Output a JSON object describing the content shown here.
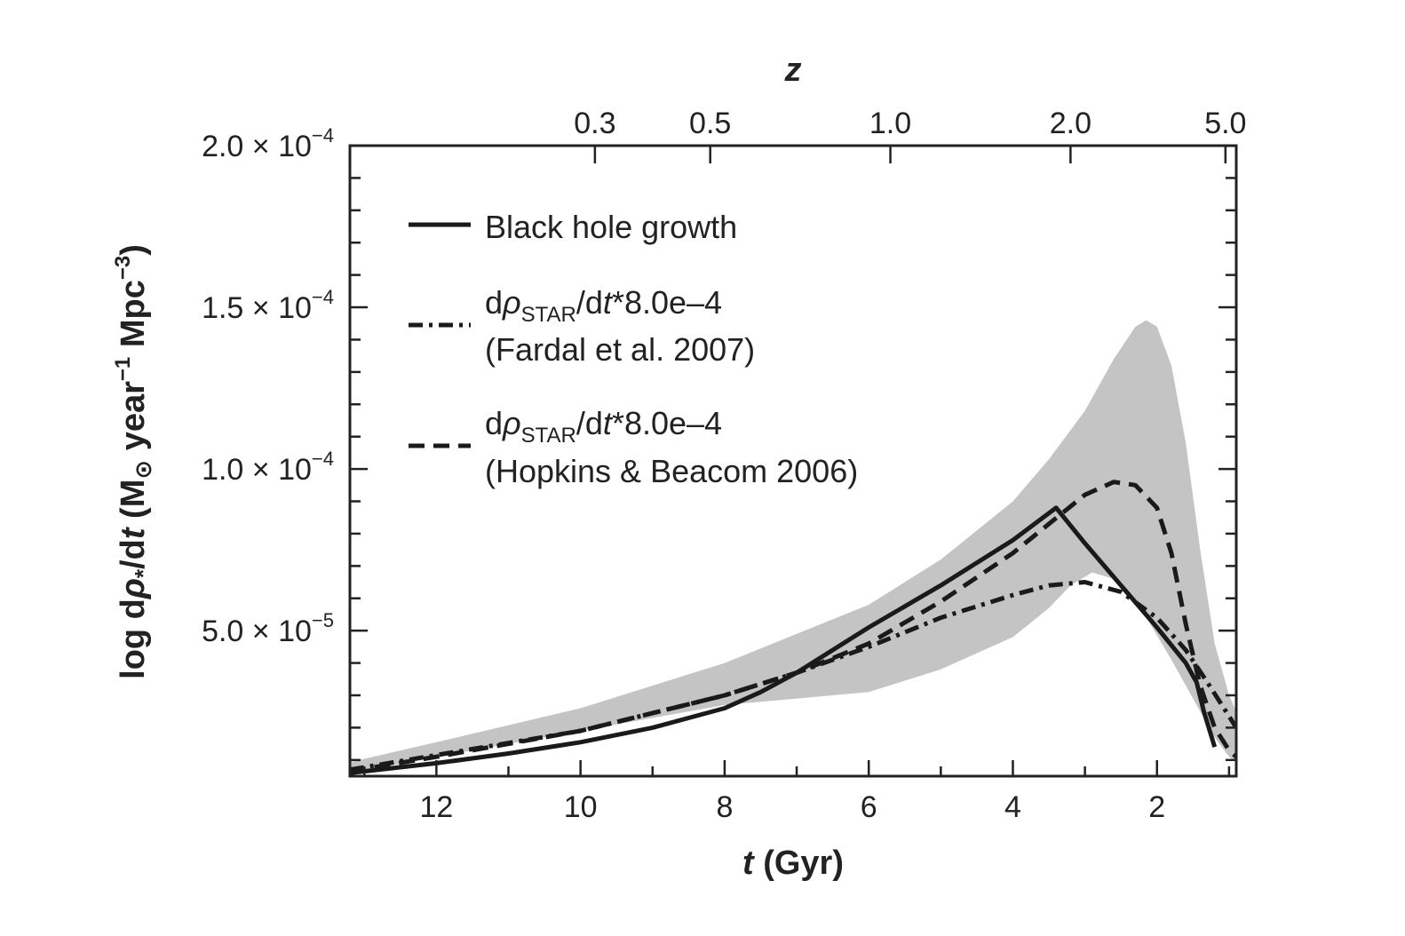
{
  "chart_data": {
    "type": "line",
    "title": "",
    "xlabel": {
      "italic": "t",
      "rest": " (Gyr)"
    },
    "ylabel": {
      "prefix": "log d",
      "rho": "ρ",
      "dot_subscript": "*",
      "mid": "/d",
      "t": "t",
      "units_open": " (M",
      "sun": "⊙",
      "year": " year",
      "year_exp": "−1",
      "mpc": " Mpc",
      "mpc_exp": "−3",
      "units_close": ")"
    },
    "top_axis_label": "z",
    "xlim": [
      13.2,
      0.9
    ],
    "ylim": [
      5e-06,
      0.0002
    ],
    "x_ticks": [
      {
        "value": 12,
        "label": "12"
      },
      {
        "value": 10,
        "label": "10"
      },
      {
        "value": 8,
        "label": "8"
      },
      {
        "value": 6,
        "label": "6"
      },
      {
        "value": 4,
        "label": "4"
      },
      {
        "value": 2,
        "label": "2"
      }
    ],
    "x_minor_step": 1,
    "top_ticks": [
      {
        "t": 9.8,
        "label": "0.3"
      },
      {
        "t": 8.2,
        "label": "0.5"
      },
      {
        "t": 5.7,
        "label": "1.0"
      },
      {
        "t": 3.2,
        "label": "2.0"
      },
      {
        "t": 1.05,
        "label": "5.0"
      }
    ],
    "y_ticks": [
      {
        "value": 5e-05,
        "mant": "5.0",
        "exp": "−5"
      },
      {
        "value": 0.0001,
        "mant": "1.0",
        "exp": "−4"
      },
      {
        "value": 0.00015,
        "mant": "1.5",
        "exp": "−4"
      },
      {
        "value": 0.0002,
        "mant": "2.0",
        "exp": "−4"
      }
    ],
    "y_tick_times": "× 10",
    "y_minor_step": 1e-05,
    "band": {
      "upper": [
        [
          13.2,
          9.3e-06
        ],
        [
          12,
          1.55e-05
        ],
        [
          10,
          2.6e-05
        ],
        [
          8,
          4e-05
        ],
        [
          6,
          5.8e-05
        ],
        [
          5,
          7.2e-05
        ],
        [
          4,
          9e-05
        ],
        [
          3.5,
          0.000103
        ],
        [
          3,
          0.000118
        ],
        [
          2.6,
          0.000134
        ],
        [
          2.3,
          0.000144
        ],
        [
          2.15,
          0.000146
        ],
        [
          2.0,
          0.000144
        ],
        [
          1.8,
          0.000132
        ],
        [
          1.6,
          0.000108
        ],
        [
          1.4,
          7.5e-05
        ],
        [
          1.2,
          4.6e-05
        ],
        [
          1.0,
          3e-05
        ],
        [
          0.9,
          2.5e-05
        ]
      ],
      "lower": [
        [
          13.2,
          5.8e-06
        ],
        [
          12,
          1.1e-05
        ],
        [
          10,
          1.9e-05
        ],
        [
          8,
          2.7e-05
        ],
        [
          7,
          2.9e-05
        ],
        [
          6,
          3.1e-05
        ],
        [
          5,
          3.8e-05
        ],
        [
          4,
          4.8e-05
        ],
        [
          3.5,
          5.7e-05
        ],
        [
          3.2,
          6.4e-05
        ],
        [
          2.9,
          6.8e-05
        ],
        [
          2.6,
          6.6e-05
        ],
        [
          2.2,
          5.6e-05
        ],
        [
          1.8,
          4.1e-05
        ],
        [
          1.5,
          2.9e-05
        ],
        [
          1.2,
          1.7e-05
        ],
        [
          1.0,
          1.1e-05
        ],
        [
          0.9,
          9.5e-06
        ]
      ]
    },
    "series": [
      {
        "name": "Black hole growth",
        "style": "solid",
        "points": [
          [
            13.2,
            6e-06
          ],
          [
            12,
            9e-06
          ],
          [
            11,
            1.2e-05
          ],
          [
            10,
            1.55e-05
          ],
          [
            9,
            2e-05
          ],
          [
            8,
            2.6e-05
          ],
          [
            7.5,
            3.1e-05
          ],
          [
            7,
            3.7e-05
          ],
          [
            6.5,
            4.4e-05
          ],
          [
            6,
            5.1e-05
          ],
          [
            5,
            6.4e-05
          ],
          [
            4,
            7.8e-05
          ],
          [
            3.4,
            8.8e-05
          ],
          [
            3.0,
            7.7e-05
          ],
          [
            2.5,
            6.4e-05
          ],
          [
            2.0,
            5.1e-05
          ],
          [
            1.6,
            4e-05
          ],
          [
            1.45,
            3.4e-05
          ],
          [
            1.35,
            2.5e-05
          ],
          [
            1.2,
            1.4e-05
          ]
        ]
      },
      {
        "name": "Fardal",
        "style": "dashdot",
        "points": [
          [
            13.2,
            7e-06
          ],
          [
            12,
            1.15e-05
          ],
          [
            10,
            1.9e-05
          ],
          [
            8,
            3e-05
          ],
          [
            7,
            3.7e-05
          ],
          [
            6,
            4.5e-05
          ],
          [
            5,
            5.4e-05
          ],
          [
            4,
            6.1e-05
          ],
          [
            3.5,
            6.4e-05
          ],
          [
            3.0,
            6.5e-05
          ],
          [
            2.5,
            6.2e-05
          ],
          [
            2.0,
            5.4e-05
          ],
          [
            1.6,
            4.4e-05
          ],
          [
            1.3,
            3.4e-05
          ],
          [
            1.1,
            2.7e-05
          ],
          [
            0.9,
            2e-05
          ]
        ]
      },
      {
        "name": "Hopkins",
        "style": "dashed",
        "points": [
          [
            13.2,
            6.5e-06
          ],
          [
            12,
            1.1e-05
          ],
          [
            10,
            1.9e-05
          ],
          [
            8,
            3e-05
          ],
          [
            7,
            3.7e-05
          ],
          [
            6,
            4.6e-05
          ],
          [
            5,
            5.9e-05
          ],
          [
            4,
            7.4e-05
          ],
          [
            3.5,
            8.3e-05
          ],
          [
            3.0,
            9.2e-05
          ],
          [
            2.6,
            9.6e-05
          ],
          [
            2.3,
            9.5e-05
          ],
          [
            2.0,
            8.8e-05
          ],
          [
            1.8,
            7.4e-05
          ],
          [
            1.6,
            5.2e-05
          ],
          [
            1.4,
            3.3e-05
          ],
          [
            1.2,
            2e-05
          ],
          [
            1.0,
            1.3e-05
          ],
          [
            0.9,
            1.1e-05
          ]
        ]
      }
    ],
    "legend": {
      "placement": "upper-left",
      "entries": [
        {
          "key": "black-hole",
          "style": "solid",
          "line1": "Black hole growth",
          "line2": ""
        },
        {
          "key": "fardal",
          "style": "dashdot",
          "line1_d": "d",
          "line1_rho": "ρ",
          "line1_sub": "STAR",
          "line1_mid": "/d",
          "line1_t": "t",
          "line1_tail": "*8.0e–4",
          "line2": "(Fardal et al. 2007)"
        },
        {
          "key": "hopkins",
          "style": "dashed",
          "line1_d": "d",
          "line1_rho": "ρ",
          "line1_sub": "STAR",
          "line1_mid": "/d",
          "line1_t": "t",
          "line1_tail": "*8.0e–4",
          "line2": "(Hopkins & Beacom 2006)"
        }
      ]
    },
    "colors": {
      "line": "#1a1a1a",
      "band": "#c4c4c4",
      "axis": "#222222"
    }
  }
}
